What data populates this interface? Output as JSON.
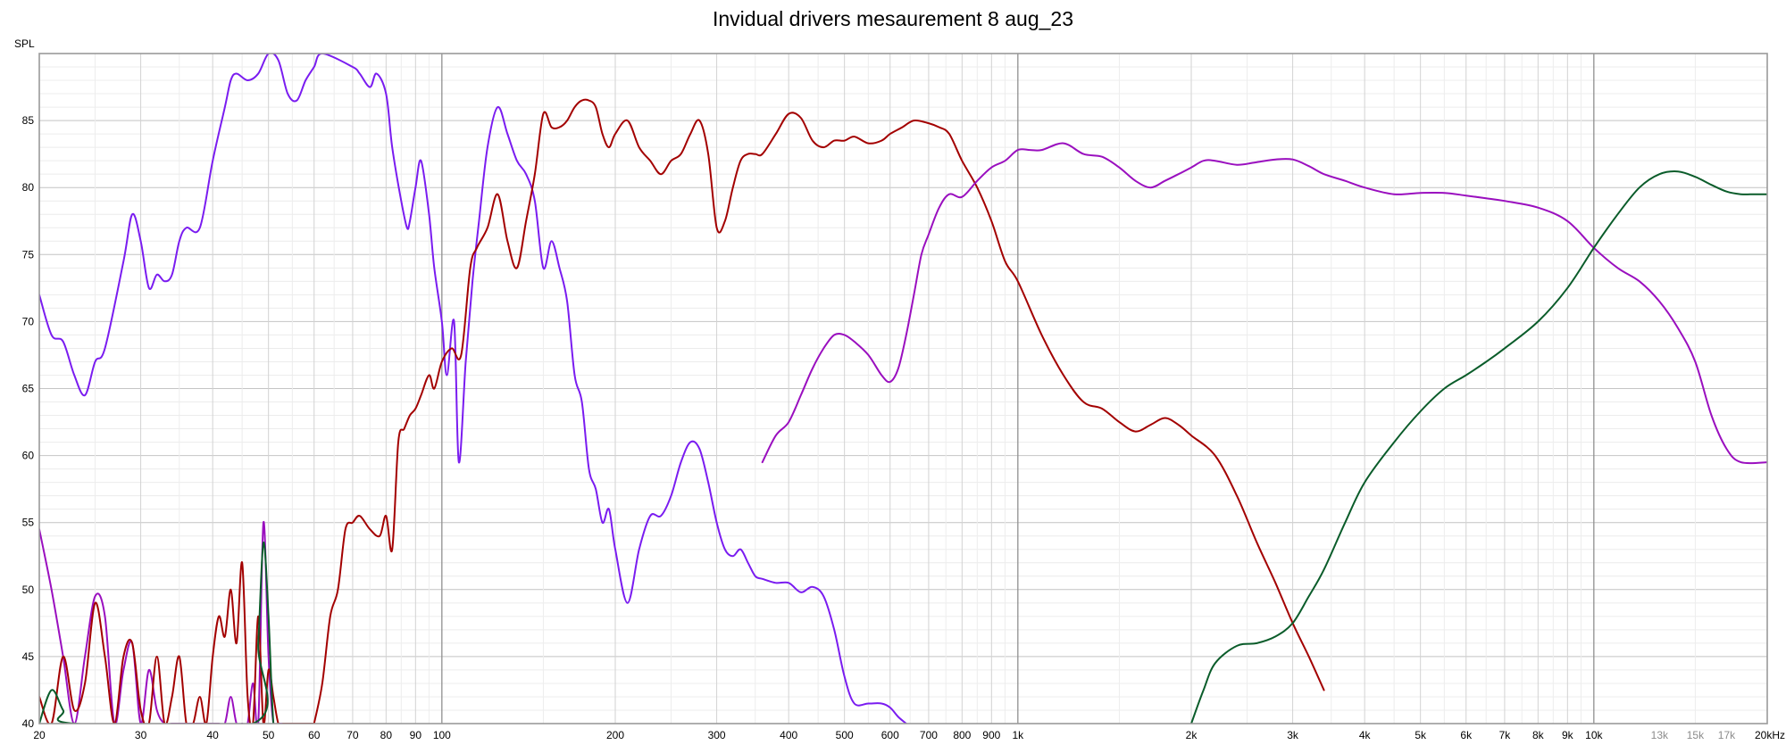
{
  "chart_data": {
    "type": "line",
    "title": "Invidual drivers mesaurement 8 aug_23",
    "ylabel": "SPL",
    "xlabel": "",
    "x_scale": "log",
    "xlim": [
      20,
      20000
    ],
    "ylim": [
      40,
      90
    ],
    "grid": true,
    "y_ticks": [
      40,
      45,
      50,
      55,
      60,
      65,
      70,
      75,
      80,
      85
    ],
    "x_ticks": [
      {
        "value": 20,
        "label": "20",
        "color": "#000000"
      },
      {
        "value": 30,
        "label": "30",
        "color": "#000000"
      },
      {
        "value": 40,
        "label": "40",
        "color": "#000000"
      },
      {
        "value": 50,
        "label": "50",
        "color": "#000000"
      },
      {
        "value": 60,
        "label": "60",
        "color": "#000000"
      },
      {
        "value": 70,
        "label": "70",
        "color": "#000000"
      },
      {
        "value": 80,
        "label": "80",
        "color": "#000000"
      },
      {
        "value": 90,
        "label": "90",
        "color": "#000000"
      },
      {
        "value": 100,
        "label": "100",
        "color": "#000000"
      },
      {
        "value": 200,
        "label": "200",
        "color": "#000000"
      },
      {
        "value": 300,
        "label": "300",
        "color": "#000000"
      },
      {
        "value": 400,
        "label": "400",
        "color": "#000000"
      },
      {
        "value": 500,
        "label": "500",
        "color": "#000000"
      },
      {
        "value": 600,
        "label": "600",
        "color": "#000000"
      },
      {
        "value": 700,
        "label": "700",
        "color": "#000000"
      },
      {
        "value": 800,
        "label": "800",
        "color": "#000000"
      },
      {
        "value": 900,
        "label": "900",
        "color": "#000000"
      },
      {
        "value": 1000,
        "label": "1k",
        "color": "#000000"
      },
      {
        "value": 2000,
        "label": "2k",
        "color": "#000000"
      },
      {
        "value": 3000,
        "label": "3k",
        "color": "#000000"
      },
      {
        "value": 4000,
        "label": "4k",
        "color": "#000000"
      },
      {
        "value": 5000,
        "label": "5k",
        "color": "#000000"
      },
      {
        "value": 6000,
        "label": "6k",
        "color": "#000000"
      },
      {
        "value": 7000,
        "label": "7k",
        "color": "#000000"
      },
      {
        "value": 8000,
        "label": "8k",
        "color": "#000000"
      },
      {
        "value": 9000,
        "label": "9k",
        "color": "#000000"
      },
      {
        "value": 10000,
        "label": "10k",
        "color": "#000000"
      },
      {
        "value": 13000,
        "label": "13k",
        "color": "#8c8c8c"
      },
      {
        "value": 15000,
        "label": "15k",
        "color": "#8c8c8c"
      },
      {
        "value": 17000,
        "label": "17k",
        "color": "#8c8c8c"
      },
      {
        "value": 20000,
        "label": "20kHz",
        "color": "#000000"
      }
    ],
    "series": [
      {
        "color": "#7a1cf0",
        "x": [
          20,
          21,
          22,
          23,
          24,
          25,
          26,
          28,
          29,
          30,
          31,
          32,
          33,
          34,
          35,
          36,
          38,
          40,
          42,
          43,
          44,
          46,
          48,
          50,
          52,
          54,
          56,
          58,
          60,
          62,
          70,
          72,
          75,
          77,
          80,
          82,
          85,
          87,
          88,
          90,
          92,
          95,
          97,
          100,
          102,
          105,
          107,
          110,
          113,
          116,
          120,
          125,
          130,
          135,
          140,
          145,
          150,
          155,
          160,
          165,
          170,
          175,
          180,
          185,
          190,
          195,
          200,
          210,
          220,
          230,
          240,
          250,
          260,
          270,
          280,
          290,
          300,
          310,
          320,
          330,
          340,
          350,
          360,
          380,
          400,
          420,
          440,
          460,
          480,
          500,
          520,
          550,
          580,
          600,
          620,
          640
        ],
        "y": [
          72,
          69,
          68.5,
          66,
          64.5,
          67,
          68,
          74.5,
          78,
          76,
          72.5,
          73.5,
          73,
          73.5,
          76,
          77,
          77,
          82,
          86,
          88,
          88.5,
          88,
          88.5,
          90,
          89.5,
          87,
          86.5,
          88,
          89,
          92,
          89,
          88.5,
          87.5,
          88.5,
          87,
          83,
          79,
          77,
          77.5,
          80,
          82,
          78,
          74,
          70,
          66,
          70,
          59.5,
          67,
          73,
          77.5,
          83,
          86,
          84,
          82,
          81,
          79,
          74,
          76,
          74,
          71.5,
          66,
          64,
          59,
          57.5,
          55,
          56,
          53,
          49,
          53,
          55.5,
          55.5,
          57,
          59.5,
          61,
          60.5,
          58,
          55,
          53,
          52.5,
          53,
          52,
          51,
          50.8,
          50.5,
          50.5,
          49.8,
          50.2,
          49.5,
          47,
          43.5,
          41.5,
          41.5,
          41.5,
          41.2,
          40.5,
          40
        ]
      },
      {
        "color": "#a30000",
        "x": [
          60,
          62,
          64,
          66,
          68,
          70,
          72,
          75,
          78,
          80,
          82,
          84,
          86,
          88,
          90,
          92,
          95,
          97,
          100,
          104,
          108,
          112,
          115,
          120,
          125,
          130,
          135,
          140,
          145,
          150,
          155,
          160,
          165,
          170,
          175,
          180,
          185,
          190,
          195,
          200,
          210,
          220,
          230,
          240,
          250,
          260,
          270,
          280,
          290,
          300,
          310,
          320,
          330,
          340,
          350,
          360,
          380,
          400,
          420,
          440,
          460,
          480,
          500,
          520,
          550,
          580,
          600,
          630,
          660,
          700,
          730,
          760,
          800,
          850,
          900,
          950,
          1000,
          1100,
          1200,
          1300,
          1400,
          1500,
          1600,
          1700,
          1800,
          1900,
          2000,
          2200,
          2400,
          2600,
          2800,
          3000,
          3200,
          3400
        ],
        "y": [
          40,
          43,
          48,
          50,
          54.5,
          55,
          55.5,
          54.5,
          54,
          55.5,
          53,
          61,
          62,
          63,
          63.5,
          64.5,
          66,
          65,
          67,
          68,
          67.5,
          74,
          75.5,
          77,
          79.5,
          76,
          74,
          77.5,
          81,
          85.5,
          84.5,
          84.5,
          85,
          86,
          86.5,
          86.5,
          86,
          84,
          83,
          84,
          85,
          83,
          82,
          81,
          82,
          82.5,
          84,
          85,
          82.5,
          77,
          77.5,
          80,
          82,
          82.5,
          82.5,
          82.5,
          84,
          85.5,
          85.2,
          83.5,
          83,
          83.5,
          83.5,
          83.8,
          83.3,
          83.5,
          84,
          84.5,
          85,
          84.8,
          84.5,
          84,
          82,
          80,
          77.5,
          74.5,
          73,
          69,
          66,
          64,
          63.5,
          62.5,
          61.8,
          62.3,
          62.8,
          62.3,
          61.5,
          60,
          57,
          53.5,
          50.5,
          47.5,
          45,
          42.5
        ]
      },
      {
        "color": "#9a0fbf",
        "x": [
          360,
          380,
          400,
          420,
          440,
          460,
          480,
          500,
          520,
          550,
          580,
          600,
          620,
          640,
          660,
          680,
          700,
          730,
          760,
          800,
          850,
          900,
          950,
          1000,
          1050,
          1100,
          1200,
          1300,
          1400,
          1500,
          1600,
          1700,
          1800,
          1900,
          2000,
          2100,
          2200,
          2400,
          2600,
          2800,
          3000,
          3200,
          3400,
          3700,
          4000,
          4500,
          5000,
          5500,
          6000,
          6500,
          7000,
          8000,
          9000,
          10000,
          11000,
          12000,
          13000,
          14000,
          15000,
          16000,
          17000,
          18000,
          20000
        ],
        "y": [
          59.5,
          61.5,
          62.5,
          64.5,
          66.5,
          68,
          69,
          69,
          68.5,
          67.5,
          66,
          65.5,
          66.5,
          69,
          72,
          75,
          76.5,
          78.5,
          79.5,
          79.3,
          80.5,
          81.5,
          82,
          82.8,
          82.8,
          82.8,
          83.3,
          82.5,
          82.3,
          81.5,
          80.5,
          80,
          80.5,
          81,
          81.5,
          82,
          82,
          81.7,
          81.9,
          82.1,
          82.1,
          81.6,
          81,
          80.5,
          80,
          79.5,
          79.6,
          79.6,
          79.4,
          79.2,
          79,
          78.5,
          77.5,
          75.5,
          74,
          73,
          71.5,
          69.5,
          67,
          63,
          60.5,
          59.5,
          59.5
        ]
      },
      {
        "color": "#0a5c2a",
        "x": [
          2000,
          2100,
          2200,
          2400,
          2600,
          2800,
          3000,
          3200,
          3400,
          3700,
          4000,
          4500,
          5000,
          5500,
          6000,
          6500,
          7000,
          8000,
          9000,
          10000,
          11000,
          12000,
          13000,
          14000,
          15000,
          16000,
          17000,
          18000,
          19000,
          20000
        ],
        "y": [
          40,
          42.5,
          44.5,
          45.8,
          46,
          46.5,
          47.5,
          49.5,
          51.5,
          55,
          58,
          61,
          63.3,
          65,
          66,
          67,
          68,
          70,
          72.5,
          75.5,
          78,
          80,
          81,
          81.2,
          80.8,
          80.2,
          79.7,
          79.5,
          79.5,
          79.5
        ]
      },
      {
        "color": "#9a0fbf",
        "x": [
          20,
          21,
          22,
          23,
          24,
          25,
          26,
          27,
          28,
          29,
          30,
          31,
          32,
          33,
          34,
          35,
          36,
          37,
          38,
          39,
          40,
          41,
          42,
          43,
          44,
          45,
          46,
          47,
          48,
          49,
          50,
          51,
          52,
          53,
          54,
          55,
          56,
          57,
          58
        ],
        "y": [
          54.5,
          50,
          45,
          40,
          45,
          49.5,
          48,
          40,
          44,
          46,
          40,
          44,
          41,
          40,
          40,
          40,
          40,
          40,
          40,
          40,
          40,
          40,
          40,
          42,
          40,
          40,
          40,
          43,
          40,
          55,
          45,
          40,
          40,
          40,
          40,
          40,
          40,
          40,
          40
        ]
      },
      {
        "color": "#a30000",
        "x": [
          20,
          21,
          22,
          23,
          24,
          25,
          26,
          27,
          28,
          29,
          30,
          31,
          32,
          33,
          34,
          35,
          36,
          37,
          38,
          39,
          40,
          41,
          42,
          43,
          44,
          45,
          46,
          47,
          48,
          49,
          50,
          51,
          52,
          53,
          54,
          55,
          56,
          57,
          58,
          59,
          60
        ],
        "y": [
          42,
          40,
          45,
          41,
          43,
          49,
          45,
          40,
          45,
          46,
          41,
          40,
          45,
          40,
          42,
          45,
          40,
          40,
          42,
          40,
          45,
          48,
          46.5,
          50,
          46,
          52,
          42,
          40,
          48,
          40,
          44,
          42,
          40,
          40,
          40,
          40,
          40,
          40,
          40,
          40,
          40
        ]
      },
      {
        "color": "#0a5c2a",
        "x": [
          20,
          21,
          22,
          23,
          47,
          48,
          49,
          50,
          51,
          52
        ],
        "y": [
          40,
          42.5,
          41,
          40,
          40,
          46,
          53.5,
          48,
          40,
          40
        ]
      }
    ]
  }
}
